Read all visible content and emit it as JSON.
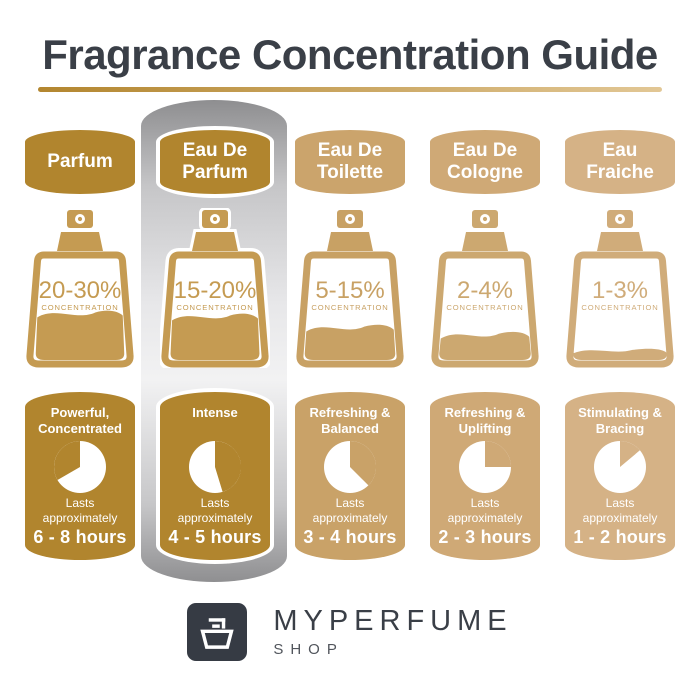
{
  "title": "Fragrance Concentration Guide",
  "labels": {
    "concentration": "CONCENTRATION",
    "lasts_line1": "Lasts",
    "lasts_line2": "approximately"
  },
  "colors": {
    "text_dark": "#3a3f47",
    "underline_from": "#b3862f",
    "underline_to": "#e2c795",
    "panel_gray": "#8f8f91",
    "logo_bg": "#363b44"
  },
  "columns": [
    {
      "name": "parfum",
      "banner_lines": [
        "Parfum"
      ],
      "percent": "20-30%",
      "strength_lines": [
        "Powerful,",
        "Concentrated"
      ],
      "duration": "6 - 8 hours",
      "banner_color": "#b1852e",
      "bottle_color": "#c59b52",
      "card_color": "#b1852e",
      "fill_level": 0.47,
      "clock": {
        "start_deg": 240,
        "end_deg": 360
      },
      "highlight": false
    },
    {
      "name": "eau-de-parfum",
      "banner_lines": [
        "Eau De",
        "Parfum"
      ],
      "percent": "15-20%",
      "strength_lines": [
        "Intense"
      ],
      "duration": "4 - 5 hours",
      "banner_color": "#b1852e",
      "bottle_color": "#c59b52",
      "card_color": "#b1852e",
      "fill_level": 0.44,
      "clock": {
        "start_deg": 0,
        "end_deg": 163
      },
      "highlight": true
    },
    {
      "name": "eau-de-toilette",
      "banner_lines": [
        "Eau De",
        "Toilette"
      ],
      "percent": "5-15%",
      "strength_lines": [
        "Refreshing &",
        "Balanced"
      ],
      "duration": "3 - 4 hours",
      "banner_color": "#cba46c",
      "bottle_color": "#c8a164",
      "card_color": "#c9a268",
      "fill_level": 0.33,
      "clock": {
        "start_deg": 0,
        "end_deg": 135
      },
      "highlight": false
    },
    {
      "name": "eau-de-cologne",
      "banner_lines": [
        "Eau De",
        "Cologne"
      ],
      "percent": "2-4%",
      "strength_lines": [
        "Refreshing &",
        "Uplifting"
      ],
      "duration": "2 - 3 hours",
      "banner_color": "#cfa976",
      "bottle_color": "#cca870",
      "card_color": "#cfa976",
      "fill_level": 0.26,
      "clock": {
        "start_deg": 0,
        "end_deg": 90
      },
      "highlight": false
    },
    {
      "name": "eau-fraiche",
      "banner_lines": [
        "Eau",
        "Fraiche"
      ],
      "percent": "1-3%",
      "strength_lines": [
        "Stimulating &",
        "Bracing"
      ],
      "duration": "1 - 2 hours",
      "banner_color": "#d5b286",
      "bottle_color": "#d0ac7a",
      "card_color": "#d5b286",
      "fill_level": 0.1,
      "clock": {
        "start_deg": 0,
        "end_deg": 50
      },
      "highlight": false
    }
  ],
  "footer": {
    "brand": "MYPERFUME",
    "sub": "SHOP"
  }
}
